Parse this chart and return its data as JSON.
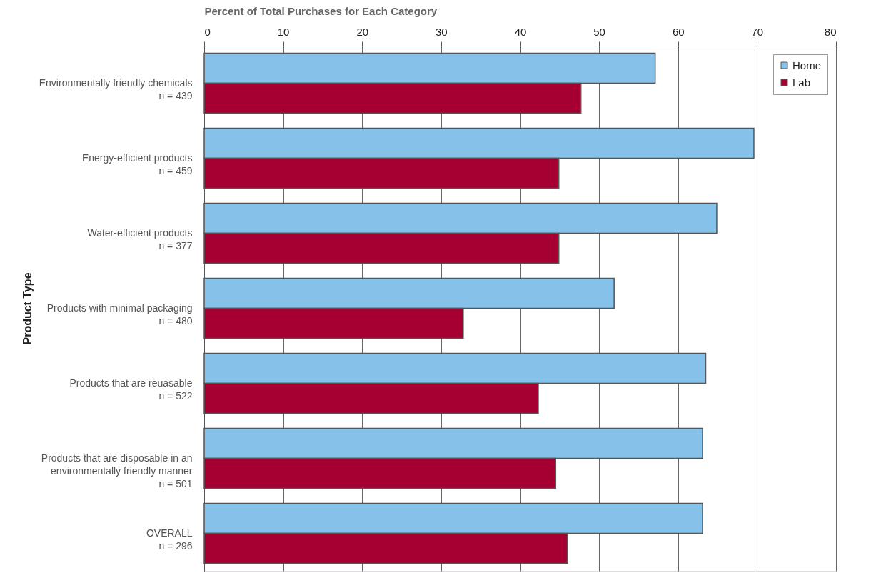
{
  "chart_data": {
    "type": "bar",
    "orientation": "horizontal",
    "xlabel": "Percent of Total Purchases for Each Category",
    "ylabel": "Product Type",
    "categories": [
      "Environmentally friendly chemicals\nn = 439",
      "Energy-efficient products\nn = 459",
      "Water-efficient products\nn = 377",
      "Products with minimal packaging\nn = 480",
      "Products that are reuasable\nn = 522",
      "Products that are disposable in an\nenvironmentally friendly manner\nn = 501",
      "OVERALL\nn = 296"
    ],
    "series": [
      {
        "name": "Home",
        "color": "#86c1e9",
        "values": [
          57.1,
          69.6,
          64.9,
          51.9,
          63.5,
          63.1,
          63.1
        ]
      },
      {
        "name": "Lab",
        "color": "#a50031",
        "values": [
          47.7,
          44.9,
          44.9,
          32.8,
          42.3,
          44.5,
          46.0
        ]
      }
    ],
    "xlim": [
      0,
      80
    ],
    "xticks": [
      0,
      10,
      20,
      30,
      40,
      50,
      60,
      70,
      80
    ],
    "grid": "x",
    "legend": "top right"
  }
}
